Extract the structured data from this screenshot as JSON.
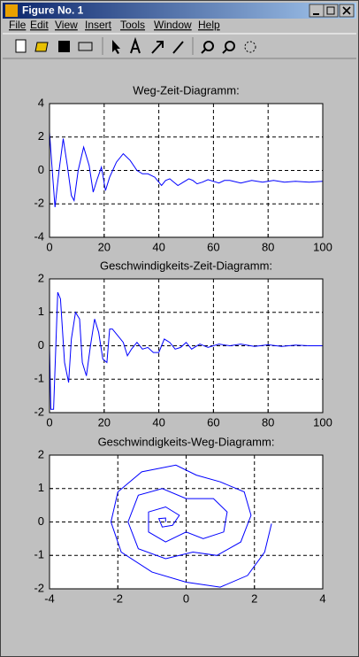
{
  "window": {
    "title": "Figure No. 1",
    "menu": [
      "File",
      "Edit",
      "View",
      "Insert",
      "Tools",
      "Window",
      "Help"
    ]
  },
  "chart_data": [
    {
      "type": "line",
      "title": "Weg-Zeit-Diagramm:",
      "color": "#0000ff",
      "grid": true,
      "x": [
        0,
        1,
        2,
        3.5,
        5,
        6.5,
        8,
        9,
        10.5,
        12.5,
        14.5,
        16,
        17.5,
        19,
        20.5,
        22,
        24.5,
        27,
        29.5,
        32,
        34,
        36,
        38.5,
        41,
        42.5,
        44,
        45.5,
        47,
        49,
        51,
        52.5,
        54,
        56,
        58,
        60,
        62,
        64,
        66,
        70,
        74,
        78,
        82,
        86,
        90,
        95,
        100
      ],
      "values": [
        2.3,
        0,
        -2.2,
        0,
        1.9,
        0.3,
        -1.5,
        -1.8,
        0,
        1.4,
        0.3,
        -1.3,
        -0.5,
        0.2,
        -1.2,
        -0.4,
        0.5,
        1.0,
        0.6,
        0,
        -0.2,
        -0.2,
        -0.4,
        -0.9,
        -0.6,
        -0.5,
        -0.7,
        -0.9,
        -0.7,
        -0.5,
        -0.6,
        -0.8,
        -0.7,
        -0.55,
        -0.65,
        -0.75,
        -0.6,
        -0.6,
        -0.75,
        -0.6,
        -0.7,
        -0.6,
        -0.7,
        -0.65,
        -0.7,
        -0.65
      ],
      "xlim": [
        0,
        100
      ],
      "xticks": [
        0,
        20,
        40,
        60,
        80,
        100
      ],
      "ylim": [
        -4,
        4
      ],
      "yticks": [
        -4,
        -2,
        0,
        2,
        4
      ]
    },
    {
      "type": "line",
      "title": "Geschwindigkeits-Zeit-Diagramm:",
      "color": "#0000ff",
      "grid": true,
      "x": [
        0,
        0.5,
        1.5,
        3,
        4,
        5.5,
        7,
        8,
        9.5,
        11,
        12,
        13.5,
        15,
        16.5,
        18,
        19.5,
        21,
        22,
        23,
        25,
        27,
        28.5,
        30,
        32,
        34,
        36,
        38,
        40,
        42,
        44,
        46,
        48,
        50,
        52,
        55,
        58,
        62,
        66,
        70,
        75,
        80,
        85,
        90,
        95,
        100
      ],
      "values": [
        0,
        -1.9,
        -1.9,
        1.6,
        1.4,
        -0.5,
        -1.1,
        0.2,
        1.0,
        0.8,
        -0.5,
        -0.9,
        0,
        0.8,
        0.4,
        -0.4,
        -0.5,
        0.5,
        0.5,
        0.3,
        0.1,
        -0.3,
        -0.1,
        0.1,
        -0.1,
        -0.05,
        -0.2,
        -0.2,
        0.2,
        0.1,
        -0.1,
        -0.05,
        0.1,
        -0.1,
        0.05,
        -0.05,
        0.05,
        0,
        0.05,
        -0.02,
        0.03,
        -0.02,
        0.02,
        0,
        0
      ],
      "xlim": [
        0,
        100
      ],
      "xticks": [
        0,
        20,
        40,
        60,
        80,
        100
      ],
      "ylim": [
        -2,
        2
      ],
      "yticks": [
        -2,
        -1,
        0,
        1,
        2
      ]
    },
    {
      "type": "line",
      "title": "Geschwindigkeits-Weg-Diagramm:",
      "color": "#0000ff",
      "grid": true,
      "x": [
        2.5,
        2.3,
        1.8,
        1.0,
        0,
        -1.0,
        -1.9,
        -2.2,
        -2.0,
        -1.3,
        -0.3,
        0.3,
        1.0,
        1.7,
        1.9,
        1.6,
        0.9,
        0.2,
        -0.6,
        -1.4,
        -1.7,
        -1.4,
        -0.7,
        0,
        0.8,
        1.2,
        1.1,
        0.5,
        0,
        -0.6,
        -1.1,
        -1.1,
        -0.6,
        -0.2,
        -0.4,
        -0.7,
        -0.8,
        -0.6,
        -0.6
      ],
      "values": [
        -0.05,
        -0.9,
        -1.6,
        -1.95,
        -1.8,
        -1.5,
        -0.9,
        0,
        0.9,
        1.5,
        1.7,
        1.4,
        1.2,
        0.9,
        0.2,
        -0.6,
        -1.0,
        -0.9,
        -1.1,
        -0.8,
        0,
        0.8,
        1.0,
        0.7,
        0.7,
        0.3,
        -0.3,
        -0.5,
        -0.3,
        -0.6,
        -0.3,
        0.3,
        0.45,
        0.2,
        -0.1,
        -0.15,
        0.1,
        0.12,
        0
      ],
      "xlim": [
        -4,
        4
      ],
      "xticks": [
        -4,
        -2,
        0,
        2,
        4
      ],
      "ylim": [
        -2,
        2
      ],
      "yticks": [
        -2,
        -1,
        0,
        1,
        2
      ]
    }
  ]
}
